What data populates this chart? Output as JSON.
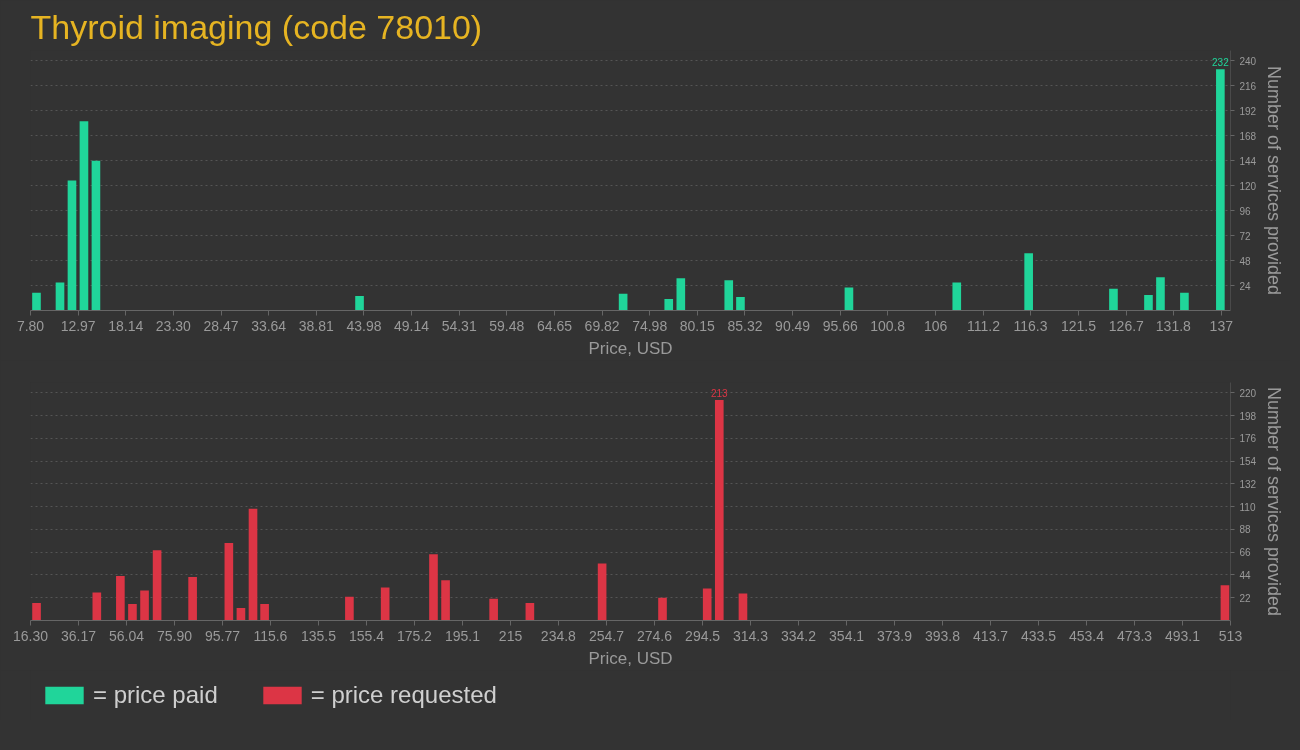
{
  "chart_data": [
    {
      "type": "bar",
      "title": "Thyroid imaging (code 78010)",
      "xlabel": "Price, USD",
      "ylabel": "Number of services provided",
      "x": [
        8.45,
        11.0,
        12.3,
        13.6,
        14.9,
        43.5,
        72.1,
        77.05,
        78.36,
        83.56,
        84.83,
        96.6,
        108.3,
        116.1,
        125.3,
        129.1,
        130.4,
        133.0,
        136.9
      ],
      "series": [
        {
          "name": "= price paid",
          "color": "#20d59a",
          "values": [
            17,
            27,
            125,
            182,
            144,
            14,
            16,
            11,
            31,
            29,
            13,
            22,
            27,
            55,
            21,
            15,
            32,
            17,
            232
          ],
          "value_labels": [
            null,
            null,
            null,
            null,
            null,
            null,
            null,
            null,
            null,
            null,
            null,
            null,
            null,
            null,
            null,
            null,
            null,
            null,
            "232"
          ]
        }
      ],
      "xlim": [
        7.8,
        138
      ],
      "xticks": [
        {
          "value": 7.8,
          "label": "7.80"
        },
        12.97,
        18.14,
        {
          "value": 23.3,
          "label": "23.30"
        },
        28.47,
        33.64,
        38.81,
        43.98,
        49.14,
        54.31,
        59.48,
        64.65,
        69.82,
        74.98,
        80.15,
        85.32,
        90.49,
        95.66,
        100.8,
        106,
        111.2,
        116.3,
        121.5,
        126.7,
        131.8,
        137
      ],
      "ylim": [
        0,
        250
      ],
      "yticks": [
        24,
        48,
        72,
        96,
        120,
        144,
        168,
        192,
        216,
        240
      ],
      "grid": "y",
      "legend": "bottom left"
    },
    {
      "type": "bar",
      "xlabel": "Price, USD",
      "ylabel": "Number of services provided",
      "x": [
        18.8,
        43.75,
        53.5,
        58.5,
        63.5,
        68.7,
        83.4,
        98.4,
        103.4,
        108.4,
        113.2,
        148.3,
        163.1,
        183.1,
        188.1,
        208.0,
        223.0,
        252.9,
        277.9,
        296.4,
        301.4,
        311.2,
        510.7
      ],
      "series": [
        {
          "name": "= price requested",
          "color": "#dc3545",
          "values": [
            17,
            27,
            43,
            16,
            29,
            68,
            42,
            75,
            12,
            108,
            16,
            23,
            32,
            64,
            39,
            21,
            17,
            55,
            22,
            31,
            213,
            26,
            34
          ],
          "value_labels": [
            null,
            null,
            null,
            null,
            null,
            null,
            null,
            null,
            null,
            null,
            null,
            null,
            null,
            null,
            null,
            null,
            null,
            null,
            null,
            null,
            "213",
            null,
            null
          ]
        }
      ],
      "xlim": [
        16.3,
        513
      ],
      "xticks": [
        {
          "value": 16.3,
          "label": "16.30"
        },
        36.17,
        56.04,
        {
          "value": 75.9,
          "label": "75.90"
        },
        95.77,
        115.6,
        135.5,
        155.4,
        175.2,
        195.1,
        215,
        234.8,
        254.7,
        274.6,
        294.5,
        314.3,
        334.2,
        354.1,
        373.9,
        393.8,
        413.7,
        433.5,
        453.4,
        473.3,
        493.1,
        513
      ],
      "ylim": [
        0,
        230
      ],
      "yticks": [
        22,
        44,
        66,
        88,
        110,
        132,
        154,
        176,
        198,
        220
      ],
      "grid": "y",
      "legend": "bottom left"
    }
  ]
}
